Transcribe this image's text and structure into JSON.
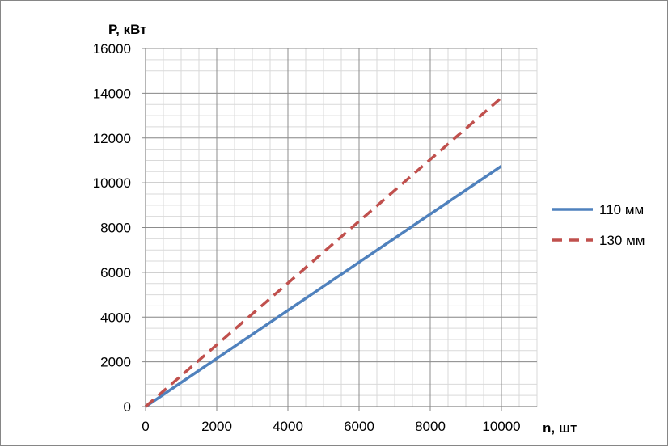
{
  "chart_data": {
    "type": "line",
    "title": "",
    "xlabel": "n, шт",
    "ylabel": "P, кВт",
    "xlim": [
      0,
      11000
    ],
    "ylim": [
      0,
      16000
    ],
    "x_ticks": [
      0,
      2000,
      4000,
      6000,
      8000,
      10000
    ],
    "y_ticks": [
      0,
      2000,
      4000,
      6000,
      8000,
      10000,
      12000,
      14000,
      16000
    ],
    "minor_x_step": 500,
    "minor_y_step": 500,
    "grid": true,
    "legend_position": "right",
    "series": [
      {
        "name": "110 мм",
        "style": "solid",
        "color": "#4F81BD",
        "x": [
          0,
          10000
        ],
        "y": [
          0,
          10750
        ]
      },
      {
        "name": "130 мм",
        "style": "dashed",
        "color": "#C0504D",
        "x": [
          0,
          10000
        ],
        "y": [
          0,
          13800
        ]
      }
    ]
  }
}
